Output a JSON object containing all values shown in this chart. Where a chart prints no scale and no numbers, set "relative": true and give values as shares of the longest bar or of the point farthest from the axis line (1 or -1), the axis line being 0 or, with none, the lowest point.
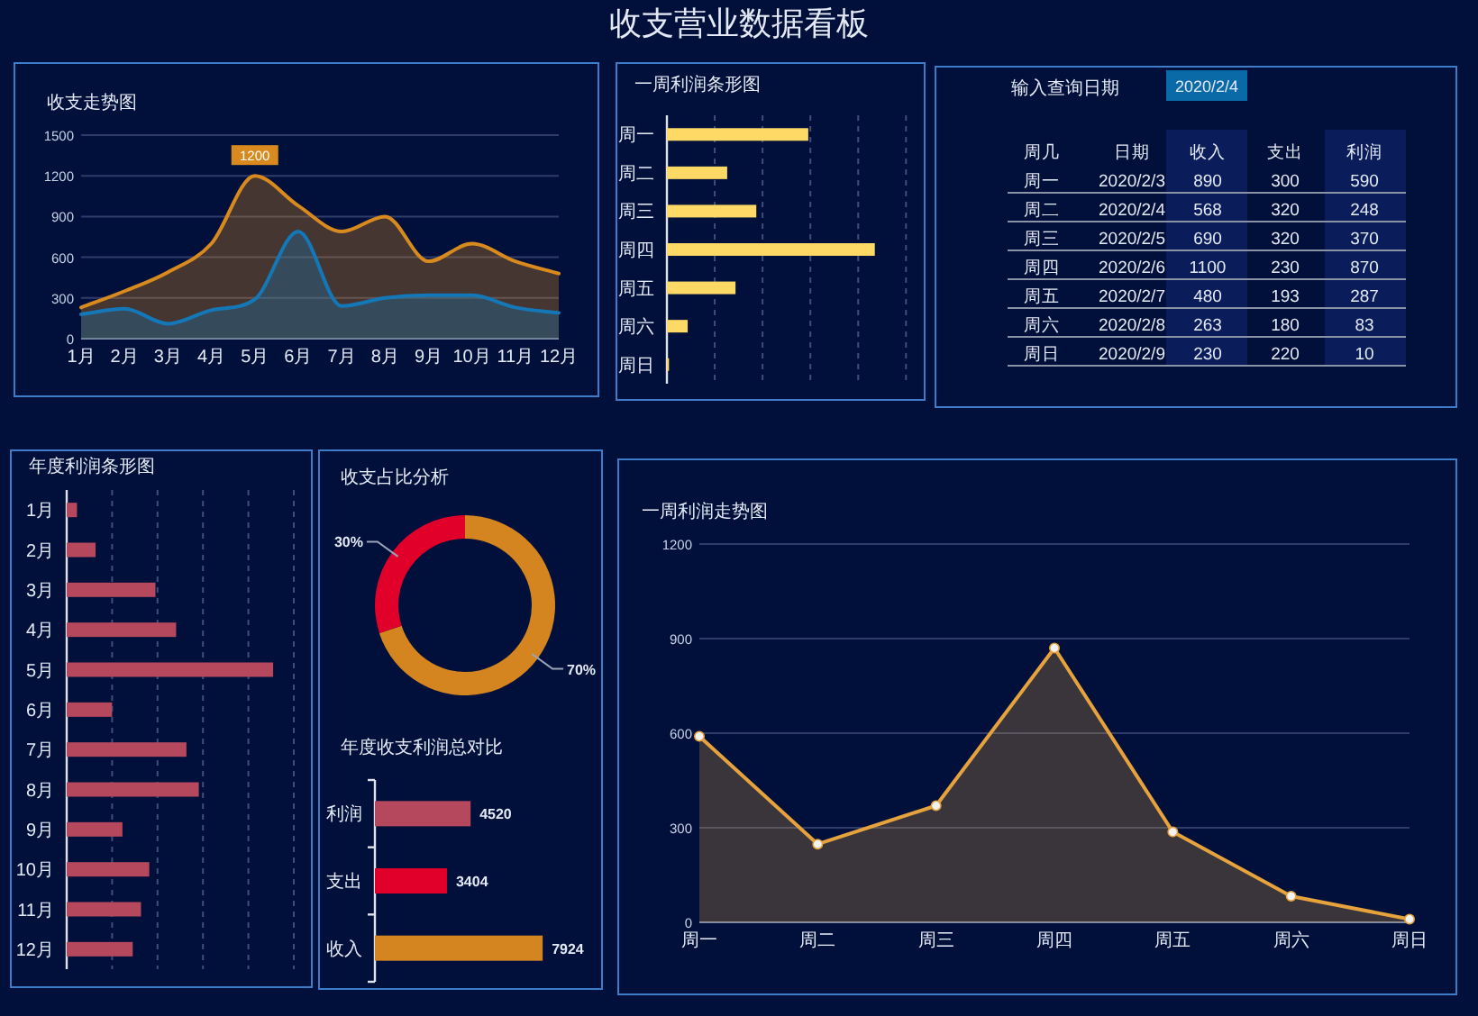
{
  "chart_data": [
    {
      "type": "other",
      "title": "收支营业数据看板"
    },
    {
      "type": "area",
      "title": "收支走势图",
      "categories": [
        "1月",
        "2月",
        "3月",
        "4月",
        "5月",
        "6月",
        "7月",
        "8月",
        "9月",
        "10月",
        "11月",
        "12月"
      ],
      "ylim": [
        0,
        1500
      ],
      "yticks": [
        0,
        300,
        600,
        900,
        1200,
        1500
      ],
      "grid": "y",
      "series": [
        {
          "color": "#d98a1e",
          "values": [
            230,
            350,
            490,
            700,
            1200,
            980,
            790,
            900,
            570,
            700,
            570,
            480
          ]
        },
        {
          "color": "#1478b8",
          "values": [
            180,
            220,
            110,
            210,
            290,
            790,
            240,
            300,
            320,
            320,
            230,
            190
          ]
        }
      ],
      "annotations": [
        {
          "text": "1200",
          "x": "5月",
          "y": 1200
        }
      ]
    },
    {
      "type": "bar",
      "orientation": "horizontal",
      "relative": true,
      "title": "一周利润条形图",
      "categories": [
        "周一",
        "周二",
        "周三",
        "周四",
        "周五",
        "周六",
        "周日"
      ],
      "ref_lines": [
        {
          "axis": "x",
          "value": 0.23,
          "color": "#3d4d7c",
          "line_style": "dashed"
        },
        {
          "axis": "x",
          "value": 0.46,
          "color": "#3d4d7c",
          "line_style": "dashed"
        },
        {
          "axis": "x",
          "value": 0.69,
          "color": "#3d4d7c",
          "line_style": "dashed"
        },
        {
          "axis": "x",
          "value": 0.92,
          "color": "#3d4d7c",
          "line_style": "dashed"
        },
        {
          "axis": "x",
          "value": 1.15,
          "color": "#3d4d7c",
          "line_style": "dashed"
        }
      ],
      "series": [
        {
          "color": "#ffd966",
          "values": [
            0.68,
            0.29,
            0.43,
            1,
            0.33,
            0.1,
            0.01
          ]
        }
      ]
    },
    {
      "type": "other",
      "annotations": [
        "输入查询日期",
        "2020/2/4",
        "周几",
        "日期",
        "收入",
        "支出",
        "利润",
        "周一",
        "2020/2/3",
        "890",
        "300",
        "590",
        "周二",
        "2020/2/4",
        "568",
        "320",
        "248",
        "周三",
        "2020/2/5",
        "690",
        "320",
        "370",
        "周四",
        "2020/2/6",
        "1100",
        "230",
        "870",
        "周五",
        "2020/2/7",
        "480",
        "193",
        "287",
        "周六",
        "2020/2/8",
        "263",
        "180",
        "83",
        "周日",
        "2020/2/9",
        "230",
        "220",
        "10"
      ]
    },
    {
      "type": "bar",
      "orientation": "horizontal",
      "relative": true,
      "title": "年度利润条形图",
      "categories": [
        "1月",
        "2月",
        "3月",
        "4月",
        "5月",
        "6月",
        "7月",
        "8月",
        "9月",
        "10月",
        "11月",
        "12月"
      ],
      "ref_lines": [
        {
          "axis": "x",
          "value": 0.22,
          "color": "#3d4d7c",
          "line_style": "dashed"
        },
        {
          "axis": "x",
          "value": 0.44,
          "color": "#3d4d7c",
          "line_style": "dashed"
        },
        {
          "axis": "x",
          "value": 0.66,
          "color": "#3d4d7c",
          "line_style": "dashed"
        },
        {
          "axis": "x",
          "value": 0.88,
          "color": "#3d4d7c",
          "line_style": "dashed"
        },
        {
          "axis": "x",
          "value": 1.1,
          "color": "#3d4d7c",
          "line_style": "dashed"
        }
      ],
      "series": [
        {
          "color": "#b5485d",
          "values": [
            0.05,
            0.14,
            0.43,
            0.53,
            1,
            0.22,
            0.58,
            0.64,
            0.27,
            0.4,
            0.36,
            0.32
          ]
        }
      ]
    },
    {
      "type": "donut",
      "title": "收支占比分析",
      "categories": [
        null,
        null
      ],
      "values": [
        70,
        30
      ],
      "colors": [
        "#d4851f",
        "#e0002a"
      ],
      "value_labels": [
        "70%",
        "30%"
      ]
    },
    {
      "type": "bar",
      "orientation": "horizontal",
      "title": "年度收支利润总对比",
      "categories": [
        "利润",
        "支出",
        "收入"
      ],
      "values": [
        4520,
        3404,
        7924
      ],
      "colors": [
        "#b5485d",
        "#e0002a",
        "#d4851f"
      ],
      "data_labels": true
    },
    {
      "type": "area",
      "title": "一周利润走势图",
      "categories": [
        "周一",
        "周二",
        "周三",
        "周四",
        "周五",
        "周六",
        "周日"
      ],
      "ylim": [
        0,
        1200
      ],
      "yticks": [
        0,
        300,
        600,
        900,
        1200
      ],
      "grid": "y",
      "marker": "circle",
      "series": [
        {
          "color": "#e6a23c",
          "values": [
            590,
            248,
            370,
            870,
            287,
            83,
            10
          ]
        }
      ]
    }
  ]
}
